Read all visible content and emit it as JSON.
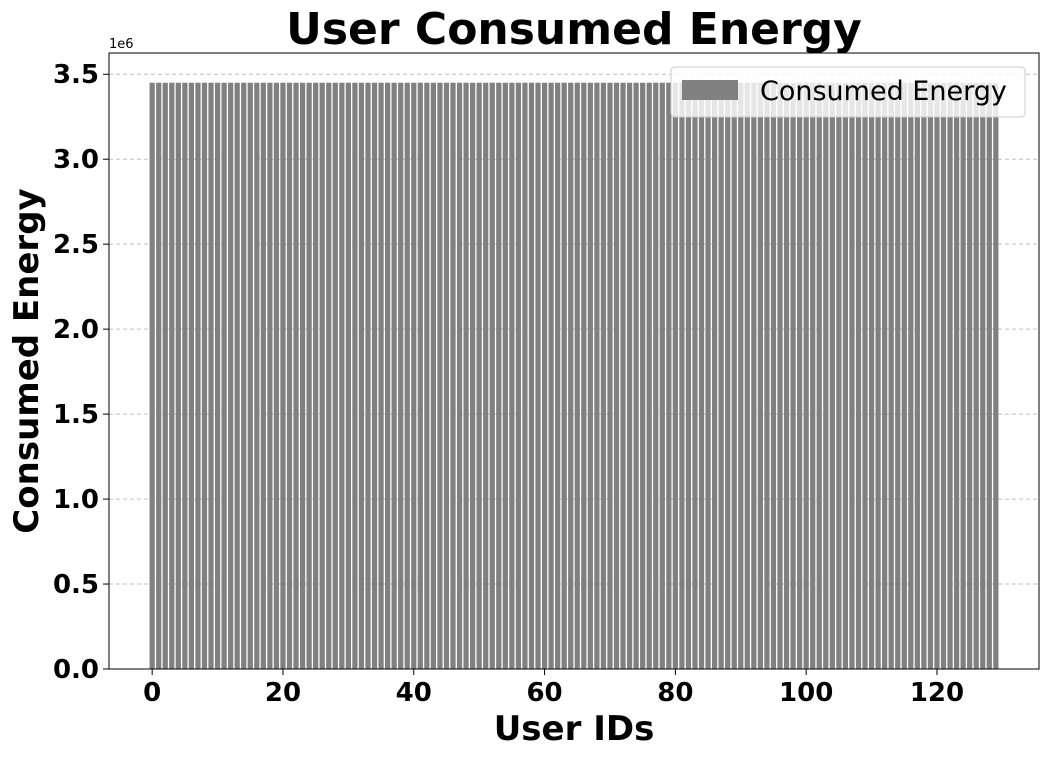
{
  "chart_data": {
    "type": "bar",
    "title": "User Consumed Energy",
    "xlabel": "User IDs",
    "ylabel": "Consumed Energy",
    "y_offset_label": "1e6",
    "x_start": 0,
    "x_end": 129,
    "bar_value": 3450000,
    "bar_color": "#808080",
    "xlim": [
      -6.6,
      135.6
    ],
    "ylim": [
      0,
      3625000
    ],
    "x_ticks": [
      0,
      20,
      40,
      60,
      80,
      100,
      120
    ],
    "x_tick_labels": [
      "0",
      "20",
      "40",
      "60",
      "80",
      "100",
      "120"
    ],
    "y_ticks": [
      0,
      500000,
      1000000,
      1500000,
      2000000,
      2500000,
      3000000,
      3500000
    ],
    "y_tick_labels": [
      "0.0",
      "0.5",
      "1.0",
      "1.5",
      "2.0",
      "2.5",
      "3.0",
      "3.5"
    ],
    "grid": "horizontal dashed",
    "grid_color": "#c0c0c0",
    "legend": {
      "position": "top-right",
      "entries": [
        {
          "label": "Consumed Energy",
          "color": "#808080"
        }
      ]
    }
  }
}
